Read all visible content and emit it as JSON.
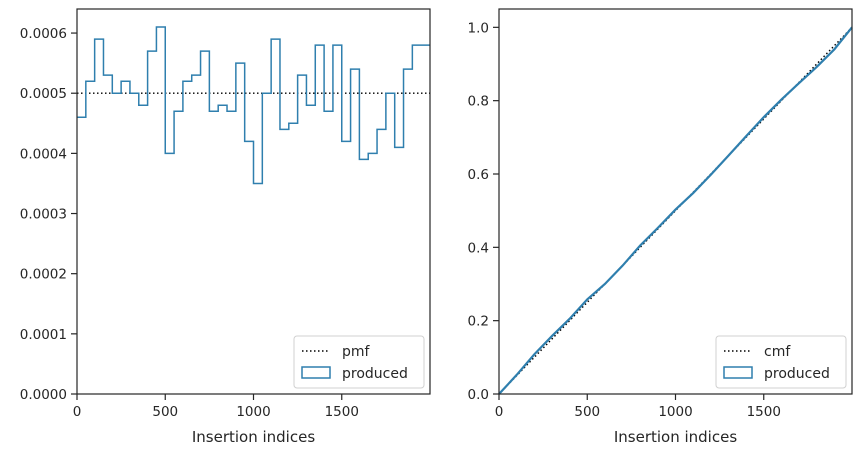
{
  "chart_data": [
    {
      "type": "step",
      "xlabel": "Insertion indices",
      "ylabel": "",
      "xlim": [
        0,
        2000
      ],
      "ylim": [
        0,
        0.00064
      ],
      "xticks": [
        "0",
        "500",
        "1000",
        "1500"
      ],
      "xtick_values": [
        0,
        500,
        1000,
        1500
      ],
      "yticks": [
        "0.0000",
        "0.0001",
        "0.0002",
        "0.0003",
        "0.0004",
        "0.0005",
        "0.0006"
      ],
      "ytick_values": [
        0,
        0.0001,
        0.0002,
        0.0003,
        0.0004,
        0.0005,
        0.0006
      ],
      "legend_position": "lower-right",
      "reference": {
        "name": "pmf",
        "style": "dotted",
        "color": "#000000",
        "value": 0.0005
      },
      "series": [
        {
          "name": "produced",
          "color": "#2f7fae",
          "bin_width": 50,
          "values": [
            0.00046,
            0.00052,
            0.00059,
            0.00053,
            0.0005,
            0.00052,
            0.0005,
            0.00048,
            0.00057,
            0.00061,
            0.0004,
            0.00047,
            0.00052,
            0.00053,
            0.00057,
            0.00047,
            0.00048,
            0.00047,
            0.00055,
            0.00042,
            0.00035,
            0.0005,
            0.00059,
            0.00044,
            0.00045,
            0.00053,
            0.00048,
            0.00058,
            0.00047,
            0.00058,
            0.00042,
            0.00054,
            0.00039,
            0.0004,
            0.00044,
            0.0005,
            0.00041,
            0.00054,
            0.00058,
            0.00058
          ]
        }
      ]
    },
    {
      "type": "line",
      "xlabel": "Insertion indices",
      "ylabel": "",
      "xlim": [
        0,
        2000
      ],
      "ylim": [
        0,
        1.05
      ],
      "xticks": [
        "0",
        "500",
        "1000",
        "1500"
      ],
      "xtick_values": [
        0,
        500,
        1000,
        1500
      ],
      "yticks": [
        "0.0",
        "0.2",
        "0.4",
        "0.6",
        "0.8",
        "1.0"
      ],
      "ytick_values": [
        0,
        0.2,
        0.4,
        0.6,
        0.8,
        1.0
      ],
      "legend_position": "lower-right",
      "reference": {
        "name": "cmf",
        "style": "dotted",
        "color": "#000000",
        "x": [
          0,
          2000
        ],
        "y": [
          0,
          1.0
        ]
      },
      "series": [
        {
          "name": "produced",
          "color": "#2f7fae",
          "x": [
            0,
            100,
            200,
            300,
            400,
            500,
            600,
            700,
            800,
            900,
            1000,
            1100,
            1200,
            1300,
            1400,
            1500,
            1600,
            1700,
            1800,
            1900,
            2000
          ],
          "y": [
            0,
            0.052,
            0.108,
            0.158,
            0.205,
            0.258,
            0.3,
            0.35,
            0.405,
            0.453,
            0.503,
            0.548,
            0.598,
            0.65,
            0.703,
            0.755,
            0.803,
            0.848,
            0.892,
            0.94,
            1.0
          ]
        }
      ]
    }
  ]
}
